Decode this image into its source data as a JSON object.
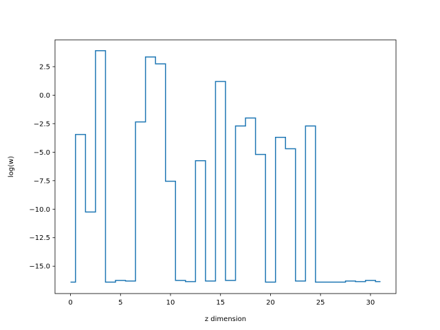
{
  "chart_data": {
    "type": "line",
    "drawstyle": "steps-mid",
    "title": "",
    "xlabel": "z dimension",
    "ylabel": "log(w)",
    "xlim": [
      -1.55,
      32.55
    ],
    "ylim": [
      -17.4,
      4.85
    ],
    "xticks": [
      0,
      5,
      10,
      15,
      20,
      25,
      30
    ],
    "xtick_labels": [
      "0",
      "5",
      "10",
      "15",
      "20",
      "25",
      "30"
    ],
    "yticks": [
      -15.0,
      -12.5,
      -10.0,
      -7.5,
      -5.0,
      -2.5,
      0.0,
      2.5
    ],
    "ytick_labels": [
      "−15.0",
      "−12.5",
      "−10.0",
      "−7.5",
      "−5.0",
      "−2.5",
      "0.0",
      "2.5"
    ],
    "grid": false,
    "legend": "none",
    "series": [
      {
        "color": "#1f77b4",
        "x": [
          0,
          1,
          2,
          3,
          4,
          5,
          6,
          7,
          8,
          9,
          10,
          11,
          12,
          13,
          14,
          15,
          16,
          17,
          18,
          19,
          20,
          21,
          22,
          23,
          24,
          25,
          26,
          27,
          28,
          29,
          30,
          31
        ],
        "y": [
          -16.4,
          -3.45,
          -10.25,
          3.9,
          -16.4,
          -16.25,
          -16.3,
          -2.35,
          3.35,
          2.75,
          -7.55,
          -16.25,
          -16.35,
          -5.75,
          -16.3,
          1.2,
          -16.25,
          -2.7,
          -2.0,
          -5.2,
          -16.4,
          -3.7,
          -4.7,
          -16.3,
          -2.7,
          -16.4,
          -16.4,
          -16.4,
          -16.3,
          -16.35,
          -16.25,
          -16.35
        ]
      }
    ]
  }
}
